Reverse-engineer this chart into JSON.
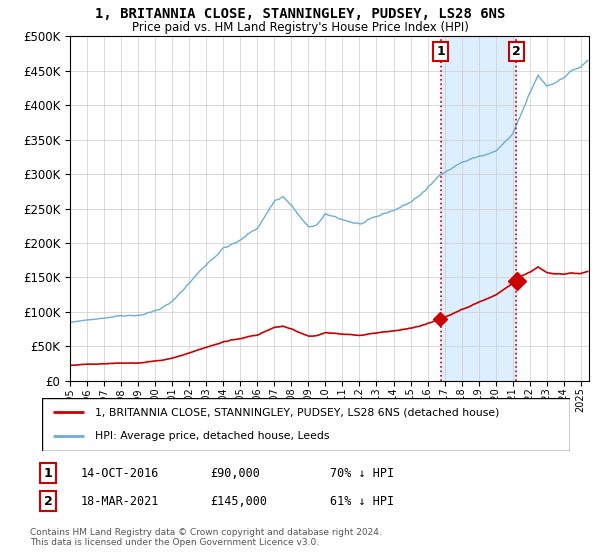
{
  "title": "1, BRITANNIA CLOSE, STANNINGLEY, PUDSEY, LS28 6NS",
  "subtitle": "Price paid vs. HM Land Registry's House Price Index (HPI)",
  "legend_label_red": "1, BRITANNIA CLOSE, STANNINGLEY, PUDSEY, LS28 6NS (detached house)",
  "legend_label_blue": "HPI: Average price, detached house, Leeds",
  "transaction1_date": "14-OCT-2016",
  "transaction1_price": "£90,000",
  "transaction1_hpi": "70% ↓ HPI",
  "transaction2_date": "18-MAR-2021",
  "transaction2_price": "£145,000",
  "transaction2_hpi": "61% ↓ HPI",
  "footer": "Contains HM Land Registry data © Crown copyright and database right 2024.\nThis data is licensed under the Open Government Licence v3.0.",
  "blue_color": "#6baed6",
  "red_color": "#cc0000",
  "shading_color": "#ddeeff",
  "vline1_x": 2016.79,
  "vline2_x": 2021.21,
  "ylim_min": 0,
  "ylim_max": 500000,
  "xlim_min": 1995.0,
  "xlim_max": 2025.5
}
